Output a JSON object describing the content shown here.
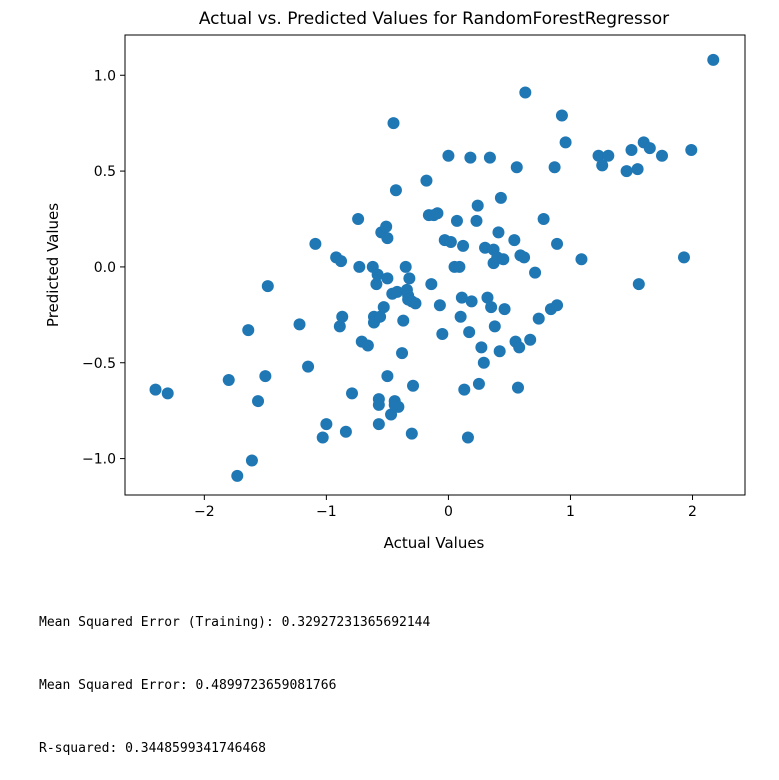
{
  "chart_data": {
    "type": "scatter",
    "title": "Actual vs. Predicted Values for RandomForestRegressor",
    "xlabel": "Actual Values",
    "ylabel": "Predicted Values",
    "xlim": [
      -2.65,
      2.43
    ],
    "ylim": [
      -1.19,
      1.21
    ],
    "xticks": [
      -2,
      -1,
      0,
      1,
      2
    ],
    "yticks": [
      -1.0,
      -0.5,
      0.0,
      0.5,
      1.0
    ],
    "xticklabels": [
      "−2",
      "−1",
      "0",
      "1",
      "2"
    ],
    "yticklabels": [
      "−1.0",
      "−0.5",
      "0.0",
      "0.5",
      "1.0"
    ],
    "grid": false,
    "color": "#1f77b4",
    "points": [
      [
        -2.4,
        -0.64
      ],
      [
        -2.3,
        -0.66
      ],
      [
        -1.8,
        -0.59
      ],
      [
        -1.73,
        -1.09
      ],
      [
        -1.64,
        -0.33
      ],
      [
        -1.61,
        -1.01
      ],
      [
        -1.56,
        -0.7
      ],
      [
        -1.5,
        -0.57
      ],
      [
        -1.48,
        -0.1
      ],
      [
        -1.22,
        -0.3
      ],
      [
        -1.15,
        -0.52
      ],
      [
        -1.09,
        0.12
      ],
      [
        -1.03,
        -0.89
      ],
      [
        -1.0,
        -0.82
      ],
      [
        -0.92,
        0.05
      ],
      [
        -0.89,
        -0.31
      ],
      [
        -0.88,
        0.03
      ],
      [
        -0.87,
        -0.26
      ],
      [
        -0.84,
        -0.86
      ],
      [
        -0.79,
        -0.66
      ],
      [
        -0.74,
        0.25
      ],
      [
        -0.73,
        0.0
      ],
      [
        -0.71,
        -0.39
      ],
      [
        -0.66,
        -0.41
      ],
      [
        -0.62,
        0.0
      ],
      [
        -0.61,
        -0.26
      ],
      [
        -0.61,
        -0.29
      ],
      [
        -0.59,
        -0.09
      ],
      [
        -0.58,
        -0.04
      ],
      [
        -0.57,
        -0.69
      ],
      [
        -0.57,
        -0.72
      ],
      [
        -0.57,
        -0.82
      ],
      [
        -0.56,
        -0.26
      ],
      [
        -0.55,
        0.18
      ],
      [
        -0.53,
        -0.21
      ],
      [
        -0.51,
        0.21
      ],
      [
        -0.5,
        -0.06
      ],
      [
        -0.5,
        -0.57
      ],
      [
        -0.5,
        0.15
      ],
      [
        -0.47,
        -0.77
      ],
      [
        -0.46,
        -0.14
      ],
      [
        -0.45,
        0.75
      ],
      [
        -0.44,
        -0.7
      ],
      [
        -0.44,
        -0.72
      ],
      [
        -0.42,
        -0.13
      ],
      [
        -0.43,
        0.4
      ],
      [
        -0.41,
        -0.73
      ],
      [
        -0.38,
        -0.45
      ],
      [
        -0.37,
        -0.28
      ],
      [
        -0.35,
        0.0
      ],
      [
        -0.34,
        -0.12
      ],
      [
        -0.33,
        -0.15
      ],
      [
        -0.33,
        -0.17
      ],
      [
        -0.32,
        -0.06
      ],
      [
        -0.3,
        -0.18
      ],
      [
        -0.3,
        -0.87
      ],
      [
        -0.29,
        -0.62
      ],
      [
        -0.27,
        -0.19
      ],
      [
        -0.18,
        0.45
      ],
      [
        -0.16,
        0.27
      ],
      [
        -0.14,
        -0.09
      ],
      [
        -0.12,
        0.27
      ],
      [
        -0.09,
        0.28
      ],
      [
        -0.07,
        -0.2
      ],
      [
        -0.05,
        -0.35
      ],
      [
        -0.03,
        0.14
      ],
      [
        0.0,
        0.58
      ],
      [
        0.02,
        0.13
      ],
      [
        0.05,
        0.0
      ],
      [
        0.07,
        0.24
      ],
      [
        0.09,
        0.0
      ],
      [
        0.1,
        -0.26
      ],
      [
        0.11,
        -0.16
      ],
      [
        0.12,
        0.11
      ],
      [
        0.13,
        -0.64
      ],
      [
        0.16,
        -0.89
      ],
      [
        0.17,
        -0.34
      ],
      [
        0.18,
        0.57
      ],
      [
        0.19,
        -0.18
      ],
      [
        0.23,
        0.24
      ],
      [
        0.24,
        0.32
      ],
      [
        0.25,
        -0.61
      ],
      [
        0.27,
        -0.42
      ],
      [
        0.29,
        -0.5
      ],
      [
        0.3,
        0.1
      ],
      [
        0.32,
        -0.16
      ],
      [
        0.34,
        0.57
      ],
      [
        0.35,
        -0.21
      ],
      [
        0.37,
        0.09
      ],
      [
        0.37,
        0.02
      ],
      [
        0.38,
        -0.31
      ],
      [
        0.4,
        0.05
      ],
      [
        0.41,
        0.18
      ],
      [
        0.42,
        -0.44
      ],
      [
        0.43,
        0.36
      ],
      [
        0.45,
        0.04
      ],
      [
        0.46,
        -0.22
      ],
      [
        0.54,
        0.14
      ],
      [
        0.55,
        -0.39
      ],
      [
        0.56,
        0.52
      ],
      [
        0.57,
        -0.63
      ],
      [
        0.58,
        -0.42
      ],
      [
        0.59,
        0.06
      ],
      [
        0.62,
        0.05
      ],
      [
        0.63,
        0.91
      ],
      [
        0.67,
        -0.38
      ],
      [
        0.71,
        -0.03
      ],
      [
        0.74,
        -0.27
      ],
      [
        0.78,
        0.25
      ],
      [
        0.84,
        -0.22
      ],
      [
        0.87,
        0.52
      ],
      [
        0.89,
        -0.2
      ],
      [
        0.89,
        0.12
      ],
      [
        0.93,
        0.79
      ],
      [
        0.96,
        0.65
      ],
      [
        1.09,
        0.04
      ],
      [
        1.23,
        0.58
      ],
      [
        1.26,
        0.53
      ],
      [
        1.31,
        0.58
      ],
      [
        1.46,
        0.5
      ],
      [
        1.5,
        0.61
      ],
      [
        1.55,
        0.51
      ],
      [
        1.56,
        -0.09
      ],
      [
        1.6,
        0.65
      ],
      [
        1.65,
        0.62
      ],
      [
        1.75,
        0.58
      ],
      [
        1.93,
        0.05
      ],
      [
        1.99,
        0.61
      ],
      [
        2.17,
        1.08
      ]
    ]
  },
  "output": {
    "line1": "Mean Squared Error (Training): 0.32927231365692144",
    "line2": "Mean Squared Error: 0.4899723659081766",
    "line3": "R-squared: 0.3448599341746468"
  }
}
